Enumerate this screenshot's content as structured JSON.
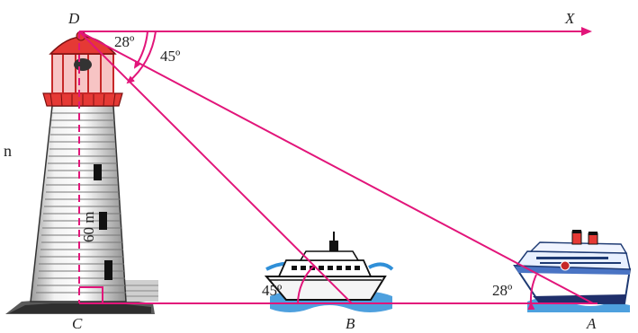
{
  "points": {
    "D": "D",
    "X": "X",
    "C": "C",
    "B": "B",
    "A": "A"
  },
  "angles": {
    "depression_small": "28º",
    "depression_large": "45º",
    "elevation_B": "45º",
    "elevation_A": "28º"
  },
  "height_label": "60 m",
  "stray_text": "n",
  "colors": {
    "lines": "#e2157a",
    "lighthouse_red": "#e53935",
    "water": "#2f8fd8"
  }
}
